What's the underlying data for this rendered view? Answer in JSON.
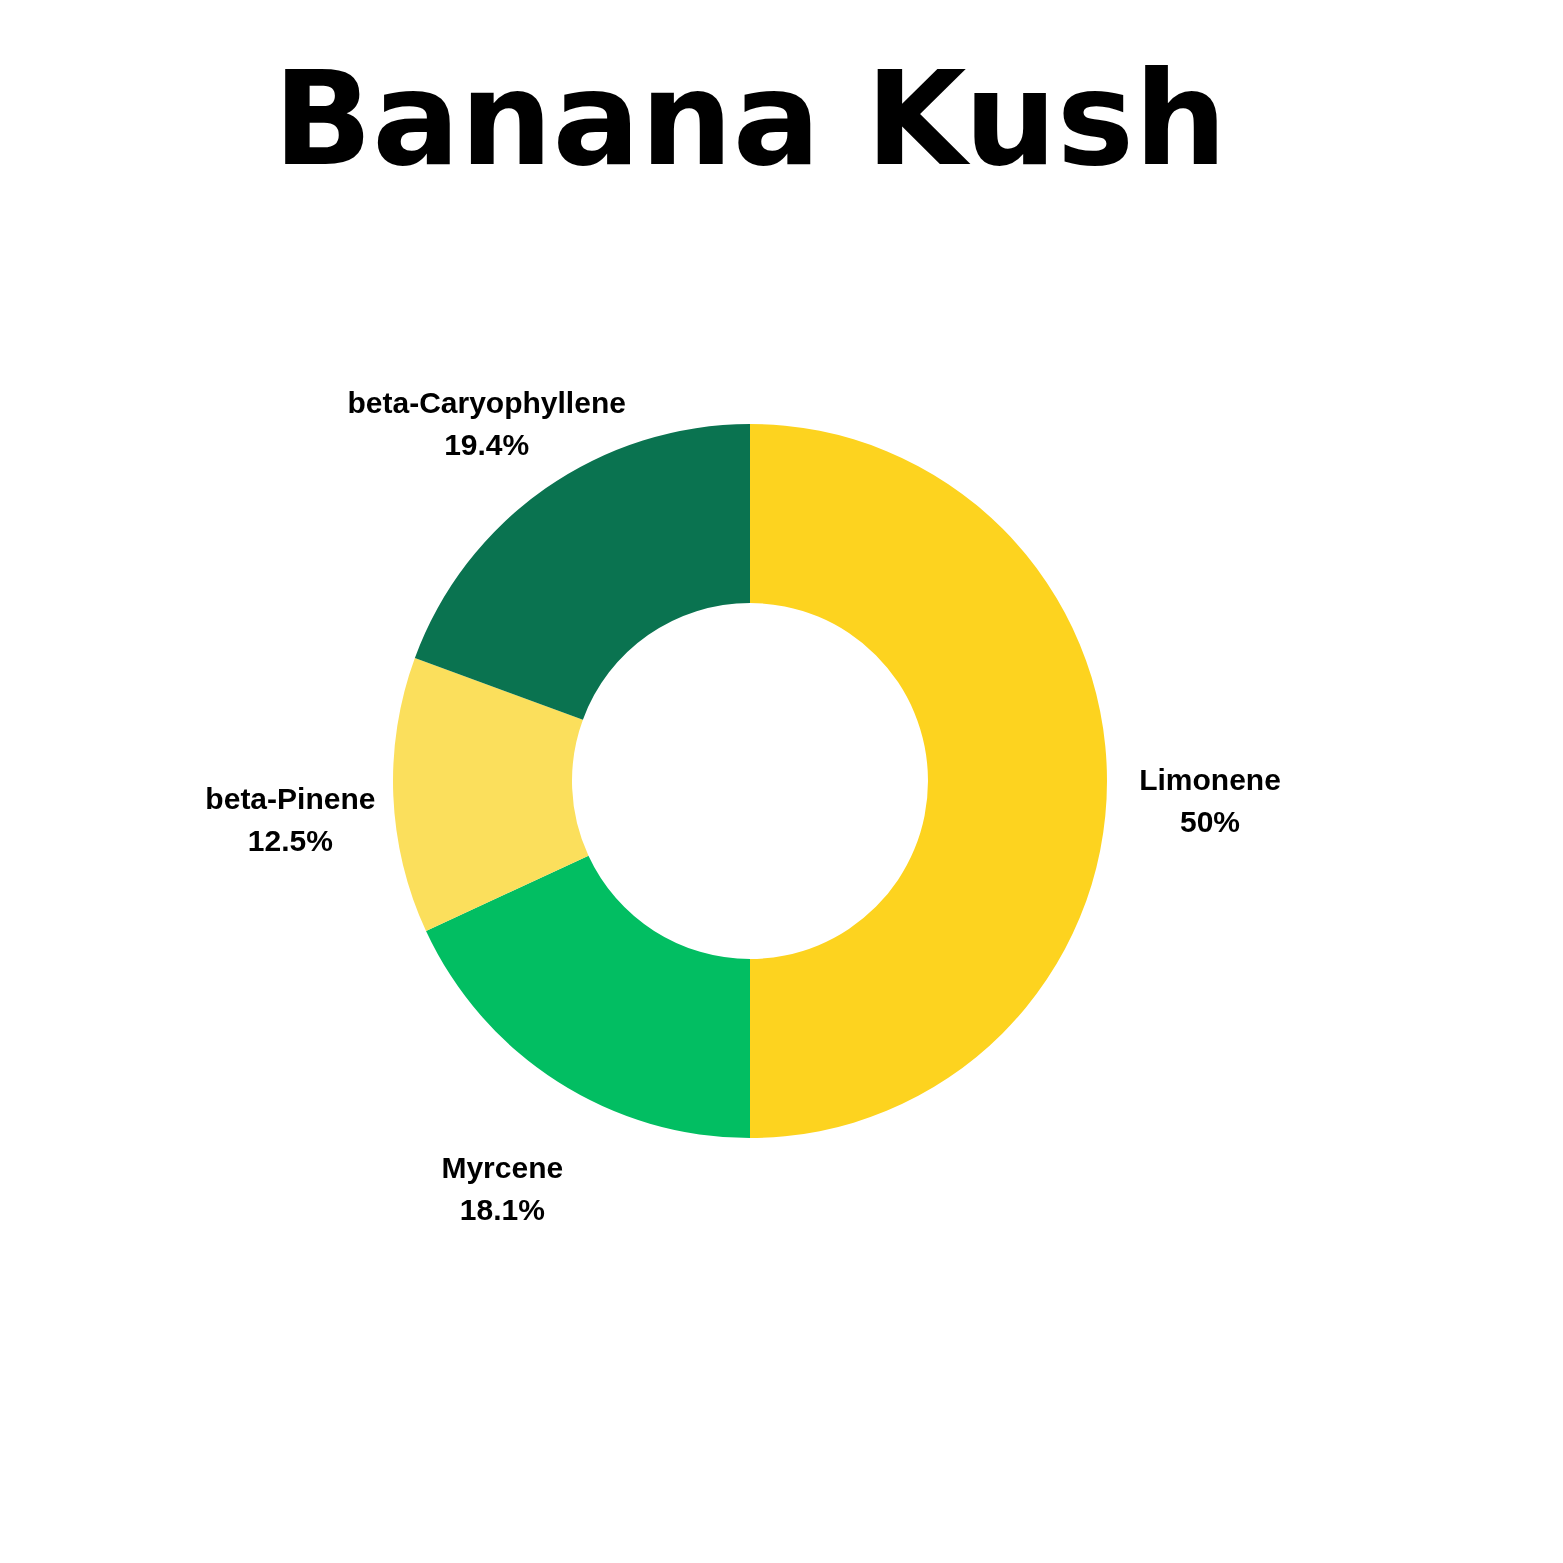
{
  "chart_data": {
    "type": "donut",
    "title": "Banana Kush",
    "categories": [
      "Limonene",
      "Myrcene",
      "beta-Pinene",
      "beta-Caryophyllene"
    ],
    "values": [
      50,
      18.1,
      12.5,
      19.4
    ],
    "value_labels": [
      "50%",
      "18.1%",
      "12.5%",
      "19.4%"
    ],
    "colors": [
      "#fdd31f",
      "#02be62",
      "#fbdf5c",
      "#0a7350"
    ],
    "legend": false
  }
}
